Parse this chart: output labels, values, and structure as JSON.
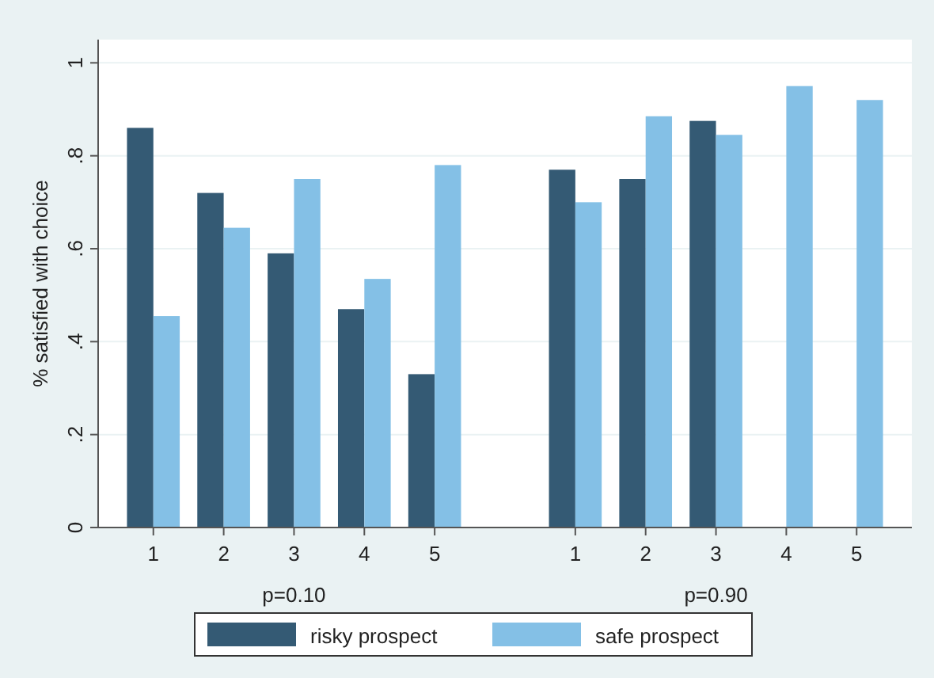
{
  "chart_data": {
    "type": "bar",
    "ylabel": "% satisfied with choice",
    "categories": [
      "1",
      "2",
      "3",
      "4",
      "5",
      null,
      "1",
      "2",
      "3",
      "4",
      "5"
    ],
    "series": [
      {
        "name": "risky prospect",
        "color": "#345a74",
        "values": [
          0.86,
          0.72,
          0.59,
          0.47,
          0.33,
          null,
          0.77,
          0.75,
          0.875,
          null,
          null
        ]
      },
      {
        "name": "safe prospect",
        "color": "#84c0e6",
        "values": [
          0.455,
          0.645,
          0.75,
          0.535,
          0.78,
          null,
          0.7,
          0.885,
          0.845,
          0.95,
          0.92
        ]
      }
    ],
    "ylim": [
      0,
      1.05
    ],
    "yticks": [
      {
        "value": 0,
        "label": "0"
      },
      {
        "value": 0.2,
        "label": ".2"
      },
      {
        "value": 0.4,
        "label": ".4"
      },
      {
        "value": 0.6,
        "label": ".6"
      },
      {
        "value": 0.8,
        "label": ".8"
      },
      {
        "value": 1,
        "label": "1"
      }
    ],
    "grid": "y",
    "legend": "bottom",
    "annotations": [
      "p=0.10",
      "p=0.90"
    ]
  }
}
